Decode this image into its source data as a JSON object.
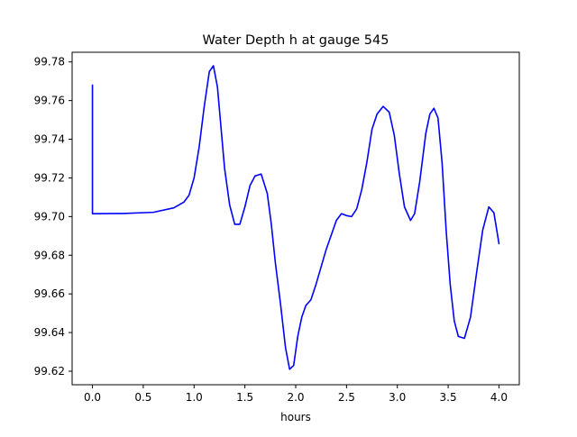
{
  "chart_data": {
    "type": "line",
    "title": "Water Depth h at gauge 545",
    "xlabel": "hours",
    "ylabel": "",
    "xlim": [
      -0.2,
      4.2
    ],
    "ylim": [
      99.613,
      99.785
    ],
    "xticks": [
      0.0,
      0.5,
      1.0,
      1.5,
      2.0,
      2.5,
      3.0,
      3.5,
      4.0
    ],
    "xtick_labels": [
      "0.0",
      "0.5",
      "1.0",
      "1.5",
      "2.0",
      "2.5",
      "3.0",
      "3.5",
      "4.0"
    ],
    "yticks": [
      99.62,
      99.64,
      99.66,
      99.68,
      99.7,
      99.72,
      99.74,
      99.76,
      99.78
    ],
    "ytick_labels": [
      "99.62",
      "99.64",
      "99.66",
      "99.68",
      "99.70",
      "99.72",
      "99.74",
      "99.76",
      "99.78"
    ],
    "grid": false,
    "legend": "none",
    "series": [
      {
        "color": "#0000ff",
        "x": [
          0.0,
          0.0,
          0.02,
          0.3,
          0.6,
          0.8,
          0.9,
          0.95,
          1.0,
          1.05,
          1.1,
          1.15,
          1.19,
          1.23,
          1.27,
          1.3,
          1.35,
          1.4,
          1.45,
          1.5,
          1.55,
          1.6,
          1.66,
          1.72,
          1.76,
          1.8,
          1.85,
          1.9,
          1.94,
          1.98,
          2.02,
          2.06,
          2.1,
          2.15,
          2.2,
          2.3,
          2.4,
          2.45,
          2.5,
          2.55,
          2.6,
          2.65,
          2.7,
          2.75,
          2.8,
          2.86,
          2.92,
          2.97,
          3.02,
          3.07,
          3.13,
          3.17,
          3.22,
          3.28,
          3.32,
          3.36,
          3.4,
          3.44,
          3.48,
          3.52,
          3.56,
          3.6,
          3.66,
          3.72,
          3.78,
          3.84,
          3.9,
          3.95,
          4.0
        ],
        "y": [
          99.768,
          99.7015,
          99.7015,
          99.7016,
          99.7022,
          99.7045,
          99.7075,
          99.711,
          99.72,
          99.736,
          99.757,
          99.775,
          99.778,
          99.767,
          99.743,
          99.725,
          99.706,
          99.696,
          99.696,
          99.705,
          99.716,
          99.721,
          99.722,
          99.712,
          99.696,
          99.676,
          99.655,
          99.632,
          99.621,
          99.623,
          99.638,
          99.648,
          99.654,
          99.657,
          99.665,
          99.683,
          99.698,
          99.7015,
          99.7005,
          99.7,
          99.704,
          99.714,
          99.728,
          99.745,
          99.753,
          99.757,
          99.754,
          99.742,
          99.722,
          99.705,
          99.698,
          99.7015,
          99.718,
          99.743,
          99.753,
          99.756,
          99.751,
          99.728,
          99.693,
          99.665,
          99.646,
          99.638,
          99.637,
          99.648,
          99.671,
          99.693,
          99.705,
          99.702,
          99.686
        ]
      }
    ]
  }
}
